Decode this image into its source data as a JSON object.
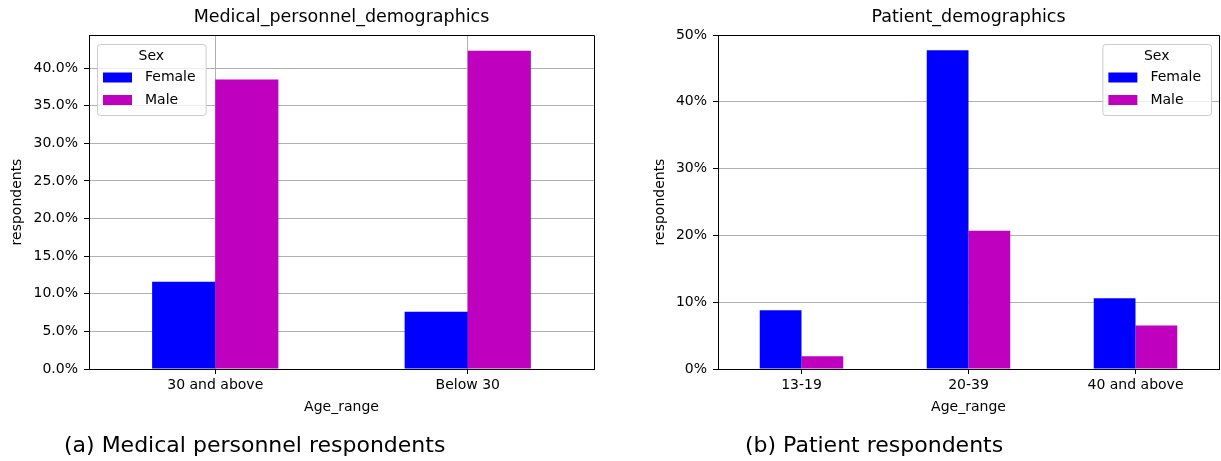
{
  "chart_data": [
    {
      "type": "bar",
      "title": "Medical_personnel_demographics",
      "xlabel": "Age_range",
      "ylabel": "respondents",
      "legend_title": "Sex",
      "categories": [
        "30 and above",
        "Below 30"
      ],
      "series": [
        {
          "name": "Female",
          "color": "#0000ff",
          "values": [
            11.6,
            7.6
          ]
        },
        {
          "name": "Male",
          "color": "#bf00bf",
          "values": [
            38.5,
            42.3
          ]
        }
      ],
      "ylim": [
        0,
        44.4
      ],
      "yticks": [
        {
          "value": 0,
          "label": "0.0%"
        },
        {
          "value": 5,
          "label": "5.0%"
        },
        {
          "value": 10,
          "label": "10.0%"
        },
        {
          "value": 15,
          "label": "15.0%"
        },
        {
          "value": 20,
          "label": "20.0%"
        },
        {
          "value": 25,
          "label": "25.0%"
        },
        {
          "value": 30,
          "label": "30.0%"
        },
        {
          "value": 35,
          "label": "35.0%"
        },
        {
          "value": 40,
          "label": "40.0%"
        }
      ],
      "grid": true,
      "legend": "top left",
      "annotations": [
        "(a) Medical personnel respondents"
      ]
    },
    {
      "type": "bar",
      "title": "Patient_demographics",
      "xlabel": "Age_range",
      "ylabel": "respondents",
      "legend_title": "Sex",
      "categories": [
        "13-19",
        "20-39",
        "40 and above"
      ],
      "series": [
        {
          "name": "Female",
          "color": "#0000ff",
          "values": [
            8.8,
            47.7,
            10.6
          ]
        },
        {
          "name": "Male",
          "color": "#bf00bf",
          "values": [
            1.9,
            20.7,
            6.5
          ]
        }
      ],
      "ylim": [
        0,
        50
      ],
      "yticks": [
        {
          "value": 0,
          "label": "0%"
        },
        {
          "value": 10,
          "label": "10%"
        },
        {
          "value": 20,
          "label": "20%"
        },
        {
          "value": 30,
          "label": "30%"
        },
        {
          "value": 40,
          "label": "40%"
        },
        {
          "value": 50,
          "label": "50%"
        }
      ],
      "grid": "y",
      "legend": "top right",
      "annotations": [
        "(b) Patient respondents"
      ]
    }
  ]
}
